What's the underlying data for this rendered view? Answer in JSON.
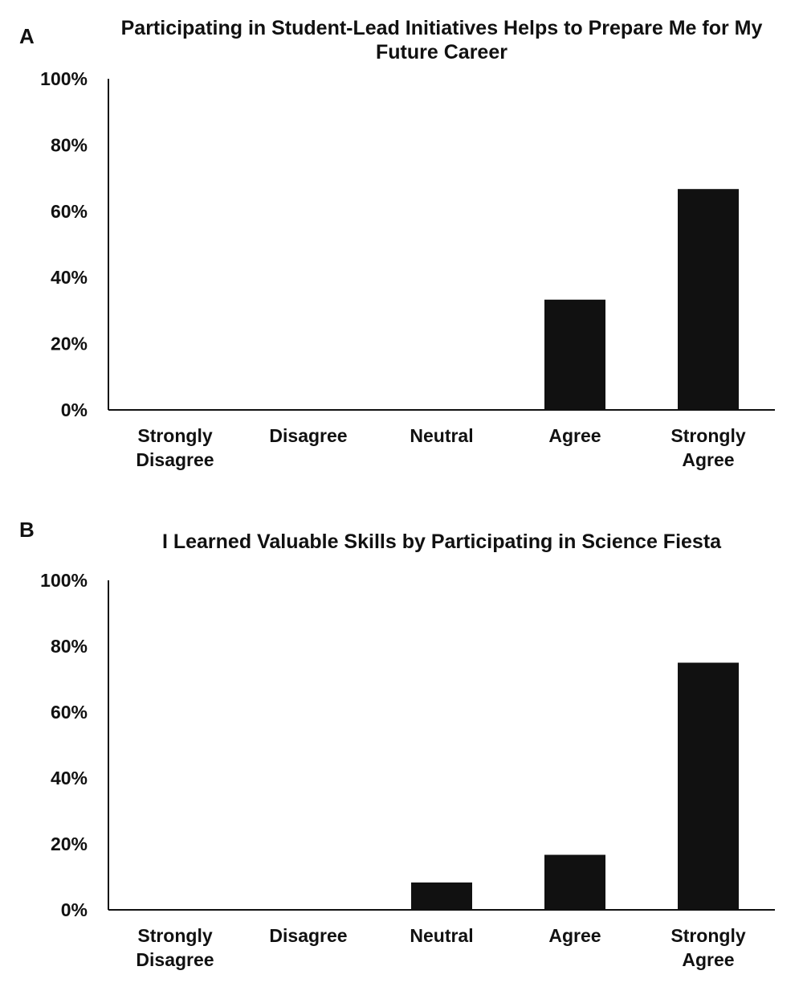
{
  "chart_data": [
    {
      "panel_label": "A",
      "type": "bar",
      "title": "Participating in Student-Lead Initiatives Helps to Prepare Me for My Future Career",
      "categories": [
        "Strongly Disagree",
        "Disagree",
        "Neutral",
        "Agree",
        "Strongly Agree"
      ],
      "values": [
        0,
        0,
        0,
        33.3,
        66.7
      ],
      "ylim": [
        0,
        100
      ],
      "yticks": [
        "0%",
        "20%",
        "40%",
        "60%",
        "80%",
        "100%"
      ],
      "xlabel": "",
      "ylabel": "",
      "grid": false,
      "bar_color": "#111111"
    },
    {
      "panel_label": "B",
      "type": "bar",
      "title": "I Learned Valuable Skills by Participating in Science Fiesta",
      "categories": [
        "Strongly Disagree",
        "Disagree",
        "Neutral",
        "Agree",
        "Strongly Agree"
      ],
      "values": [
        0,
        0,
        8.3,
        16.7,
        75
      ],
      "ylim": [
        0,
        100
      ],
      "yticks": [
        "0%",
        "20%",
        "40%",
        "60%",
        "80%",
        "100%"
      ],
      "xlabel": "",
      "ylabel": "",
      "grid": false,
      "bar_color": "#111111"
    }
  ]
}
